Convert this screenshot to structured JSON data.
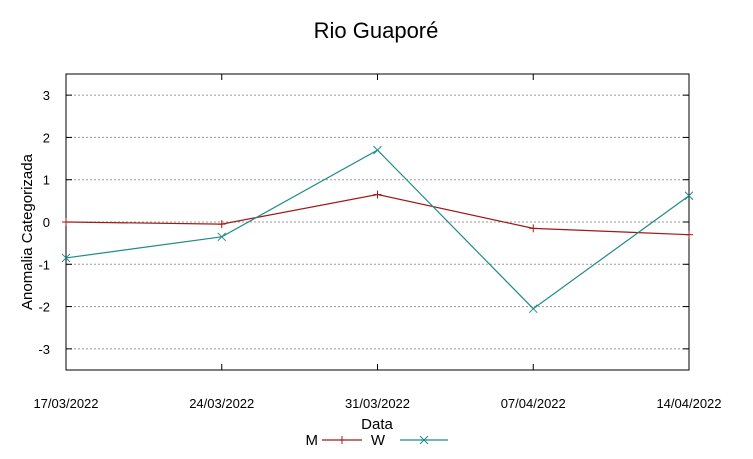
{
  "chart_data": {
    "type": "line",
    "title": "Rio Guaporé",
    "xlabel": "Data",
    "ylabel": "Anomalia Categorizada",
    "x": [
      "17/03/2022",
      "24/03/2022",
      "31/03/2022",
      "07/04/2022",
      "14/04/2022"
    ],
    "ylim": [
      -3.5,
      3.5
    ],
    "yticks": [
      "3",
      "2",
      "1",
      "0",
      "-1",
      "-2",
      "-3"
    ],
    "grid": true,
    "legend_position": "bottom-center",
    "series": [
      {
        "name": "M",
        "color": "#a01818",
        "marker": "plus",
        "values": [
          0.0,
          -0.05,
          0.65,
          -0.15,
          -0.3
        ]
      },
      {
        "name": "W",
        "color": "#1f8a8a",
        "marker": "x",
        "values": [
          -0.85,
          -0.35,
          1.7,
          -2.05,
          0.62
        ]
      }
    ]
  }
}
